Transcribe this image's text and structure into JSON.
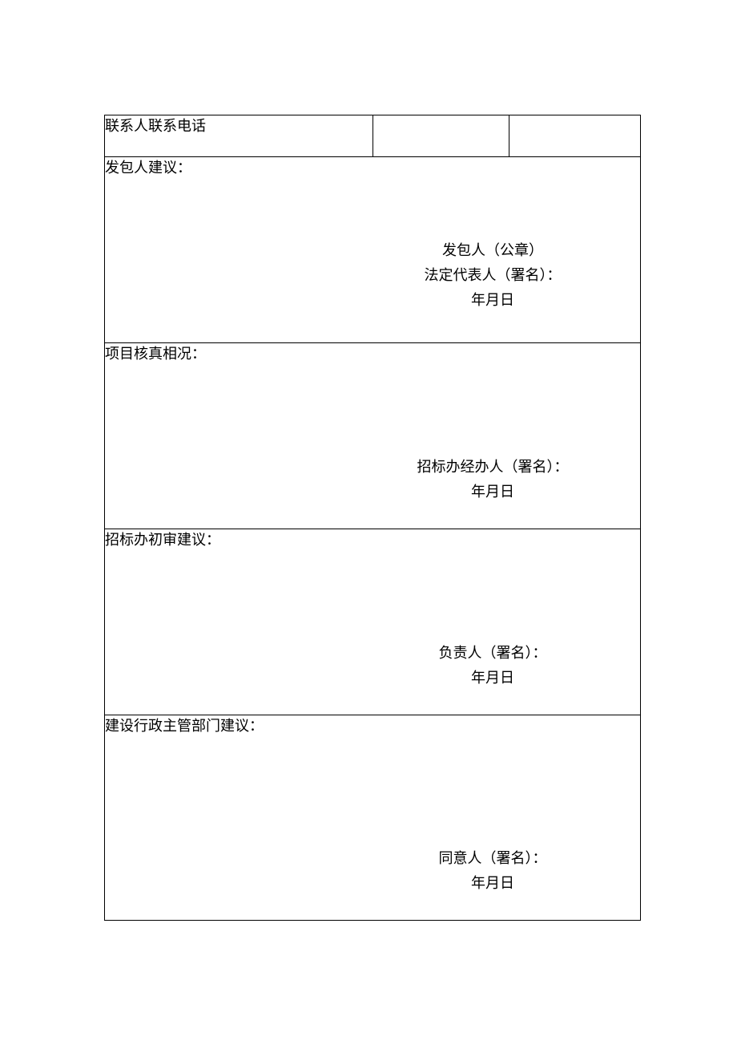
{
  "colors": {
    "background": "#ffffff",
    "text": "#000000",
    "border": "#000000"
  },
  "typography": {
    "font_family": "SimSun",
    "body_fontsize": 18
  },
  "header_row": {
    "label": "联系人联系电话",
    "value1": "",
    "value2": ""
  },
  "sections": [
    {
      "title": "发包人建议：",
      "sig_lines": [
        "发包人（公章）",
        "法定代表人（署名）：",
        "年月日"
      ]
    },
    {
      "title": "项目核真相况：",
      "sig_lines": [
        "招标办经办人（署名）：",
        "年月日"
      ]
    },
    {
      "title": "招标办初审建议：",
      "sig_lines": [
        "负责人（署名）：",
        "年月日"
      ]
    },
    {
      "title": "建设行政主管部门建议：",
      "sig_lines": [
        "同意人（署名）：",
        "年月日"
      ]
    }
  ]
}
